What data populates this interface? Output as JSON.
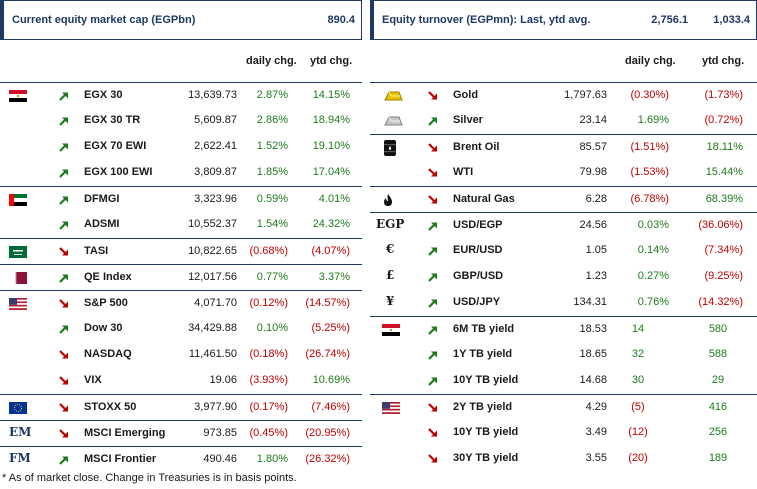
{
  "left": {
    "title": "Current equity market cap (EGPbn)",
    "title_value": "890.4",
    "header": {
      "daily": "daily chg.",
      "ytd": "ytd chg."
    },
    "rows": [
      {
        "name": "EGX 30",
        "value": "13,639.73",
        "daily": "2.87%",
        "ytd": "14.15%",
        "dir": "up",
        "daily_sign": "pos",
        "ytd_sign": "pos",
        "flag": "egypt-flag-icon",
        "border": true
      },
      {
        "name": "EGX 30 TR",
        "value": "5,609.87",
        "daily": "2.86%",
        "ytd": "18.94%",
        "dir": "up",
        "daily_sign": "pos",
        "ytd_sign": "pos",
        "flag": "",
        "border": false
      },
      {
        "name": "EGX 70 EWI",
        "value": "2,622.41",
        "daily": "1.52%",
        "ytd": "19.10%",
        "dir": "up",
        "daily_sign": "pos",
        "ytd_sign": "pos",
        "flag": "",
        "border": false
      },
      {
        "name": "EGX 100 EWI",
        "value": "3,809.87",
        "daily": "1.85%",
        "ytd": "17.04%",
        "dir": "up",
        "daily_sign": "pos",
        "ytd_sign": "pos",
        "flag": "",
        "border": false
      },
      {
        "name": "DFMGI",
        "value": "3,323.96",
        "daily": "0.59%",
        "ytd": "4.01%",
        "dir": "up",
        "daily_sign": "pos",
        "ytd_sign": "pos",
        "flag": "uae-flag-icon",
        "border": true
      },
      {
        "name": "ADSMI",
        "value": "10,552.37",
        "daily": "1.54%",
        "ytd": "24.32%",
        "dir": "up",
        "daily_sign": "pos",
        "ytd_sign": "pos",
        "flag": "",
        "border": false
      },
      {
        "name": "TASI",
        "value": "10,822.65",
        "daily": "(0.68%)",
        "ytd": "(4.07%)",
        "dir": "down",
        "daily_sign": "neg",
        "ytd_sign": "neg",
        "flag": "saudi-flag-icon",
        "border": true
      },
      {
        "name": "QE Index",
        "value": "12,017.56",
        "daily": "0.77%",
        "ytd": "3.37%",
        "dir": "up",
        "daily_sign": "pos",
        "ytd_sign": "pos",
        "flag": "qatar-flag-icon",
        "border": true
      },
      {
        "name": "S&P 500",
        "value": "4,071.70",
        "daily": "(0.12%)",
        "ytd": "(14.57%)",
        "dir": "down",
        "daily_sign": "neg",
        "ytd_sign": "neg",
        "flag": "usa-flag-icon",
        "border": true
      },
      {
        "name": "Dow 30",
        "value": "34,429.88",
        "daily": "0.10%",
        "ytd": "(5.25%)",
        "dir": "up",
        "daily_sign": "pos",
        "ytd_sign": "neg",
        "flag": "",
        "border": false
      },
      {
        "name": "NASDAQ",
        "value": "11,461.50",
        "daily": "(0.18%)",
        "ytd": "(26.74%)",
        "dir": "down",
        "daily_sign": "neg",
        "ytd_sign": "neg",
        "flag": "",
        "border": false
      },
      {
        "name": "VIX",
        "value": "19.06",
        "daily": "(3.93%)",
        "ytd": "10.69%",
        "dir": "down",
        "daily_sign": "neg",
        "ytd_sign": "pos",
        "flag": "",
        "border": false
      },
      {
        "name": "STOXX 50",
        "value": "3,977.90",
        "daily": "(0.17%)",
        "ytd": "(7.46%)",
        "dir": "down",
        "daily_sign": "neg",
        "ytd_sign": "neg",
        "flag": "eu-flag-icon",
        "border": true
      },
      {
        "name": "MSCI Emerging",
        "value": "973.85",
        "daily": "(0.45%)",
        "ytd": "(20.95%)",
        "dir": "down",
        "daily_sign": "neg",
        "ytd_sign": "neg",
        "sym": "EM",
        "border": true
      },
      {
        "name": "MSCI Frontier",
        "value": "490.46",
        "daily": "1.80%",
        "ytd": "(26.32%)",
        "dir": "up",
        "daily_sign": "pos",
        "ytd_sign": "neg",
        "sym": "FM",
        "border": true
      }
    ]
  },
  "right": {
    "title": "Equity turnover (EGPmn): Last, ytd avg.",
    "title_last": "2,756.1",
    "title_avg": "1,033.4",
    "header": {
      "daily": "daily chg.",
      "ytd": "ytd chg."
    },
    "rows": [
      {
        "name": "Gold",
        "value": "1,797.63",
        "daily": "(0.30%)",
        "ytd": "(1.73%)",
        "dir": "down",
        "daily_sign": "neg",
        "ytd_sign": "neg",
        "icon": "gold-bar-icon",
        "border": true
      },
      {
        "name": "Silver",
        "value": "23.14",
        "daily": "1.69%",
        "ytd": "(0.72%)",
        "dir": "up",
        "daily_sign": "pos",
        "ytd_sign": "neg",
        "icon": "silver-bar-icon",
        "border": false
      },
      {
        "name": "Brent Oil",
        "value": "85.57",
        "daily": "(1.51%)",
        "ytd": "18.11%",
        "dir": "down",
        "daily_sign": "neg",
        "ytd_sign": "pos",
        "icon": "oil-barrel-icon",
        "border": true
      },
      {
        "name": "WTI",
        "value": "79.98",
        "daily": "(1.53%)",
        "ytd": "15.44%",
        "dir": "down",
        "daily_sign": "neg",
        "ytd_sign": "pos",
        "icon": "",
        "border": false
      },
      {
        "name": "Natural Gas",
        "value": "6.28",
        "daily": "(6.78%)",
        "ytd": "68.39%",
        "dir": "down",
        "daily_sign": "neg",
        "ytd_sign": "pos",
        "icon": "flame-icon",
        "border": true
      },
      {
        "name": "USD/EGP",
        "value": "24.56",
        "daily": "0.03%",
        "ytd": "(36.06%)",
        "dir": "up",
        "daily_sign": "pos",
        "ytd_sign": "neg",
        "sym": "EGP",
        "border": true
      },
      {
        "name": "EUR/USD",
        "value": "1.05",
        "daily": "0.14%",
        "ytd": "(7.34%)",
        "dir": "up",
        "daily_sign": "pos",
        "ytd_sign": "neg",
        "sym": "€",
        "border": false
      },
      {
        "name": "GBP/USD",
        "value": "1.23",
        "daily": "0.27%",
        "ytd": "(9.25%)",
        "dir": "up",
        "daily_sign": "pos",
        "ytd_sign": "neg",
        "sym": "£",
        "border": false
      },
      {
        "name": "USD/JPY",
        "value": "134.31",
        "daily": "0.76%",
        "ytd": "(14.32%)",
        "dir": "up",
        "daily_sign": "pos",
        "ytd_sign": "neg",
        "sym": "¥",
        "border": false
      },
      {
        "name": "6M TB yield",
        "value": "18.53",
        "daily": "14",
        "ytd": "580",
        "dir": "up",
        "daily_sign": "mid",
        "ytd_sign": "pos",
        "icon": "egypt-flag-icon",
        "border": true
      },
      {
        "name": "1Y TB yield",
        "value": "18.65",
        "daily": "32",
        "ytd": "588",
        "dir": "up",
        "daily_sign": "mid",
        "ytd_sign": "pos",
        "icon": "",
        "border": false
      },
      {
        "name": "10Y TB yield",
        "value": "14.68",
        "daily": "30",
        "ytd": "29",
        "dir": "up",
        "daily_sign": "mid",
        "ytd_sign": "pos",
        "icon": "",
        "border": false
      },
      {
        "name": "2Y TB yield",
        "value": "4.29",
        "daily": "(5)",
        "ytd": "416",
        "dir": "down",
        "daily_sign": "midneg",
        "ytd_sign": "pos",
        "icon": "usa-flag-icon",
        "border": true
      },
      {
        "name": "10Y TB yield",
        "value": "3.49",
        "daily": "(12)",
        "ytd": "256",
        "dir": "down",
        "daily_sign": "midneg",
        "ytd_sign": "pos",
        "icon": "",
        "border": false
      },
      {
        "name": "30Y TB yield",
        "value": "3.55",
        "daily": "(20)",
        "ytd": "189",
        "dir": "down",
        "daily_sign": "midneg",
        "ytd_sign": "pos",
        "icon": "",
        "border": false
      }
    ]
  },
  "footnote": "* As of market close. Change in Treasuries is in basis points.",
  "colors": {
    "navy": "#1f3864",
    "positive": "#1e7a1e",
    "negative": "#c00000"
  }
}
